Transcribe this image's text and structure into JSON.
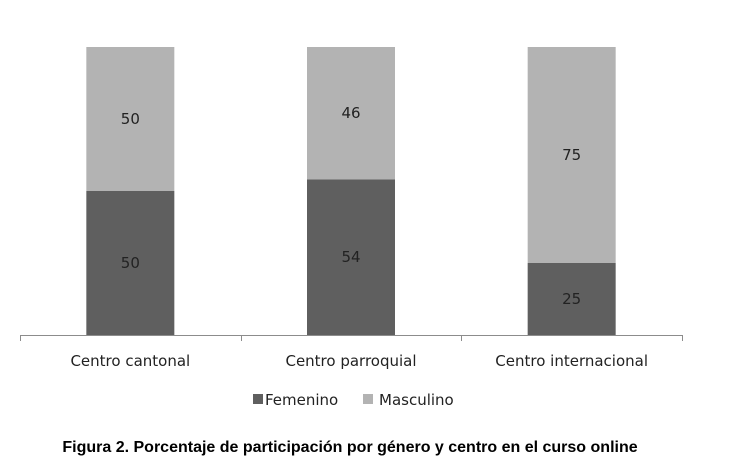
{
  "chart_data": {
    "type": "bar",
    "stacked": true,
    "percent_stacked": true,
    "categories": [
      "Centro cantonal",
      "Centro parroquial",
      "Centro internacional"
    ],
    "series": [
      {
        "name": "Femenino",
        "values": [
          50,
          54,
          25
        ],
        "color": "#5f5f5f"
      },
      {
        "name": "Masculino",
        "values": [
          50,
          46,
          75
        ],
        "color": "#b3b3b3"
      }
    ],
    "ylim": [
      0,
      100
    ],
    "grid": false,
    "legend": "bottom",
    "data_labels": true
  },
  "figure": {
    "caption": "Figura 2. Porcentaje de participación por género y centro en el curso online"
  }
}
